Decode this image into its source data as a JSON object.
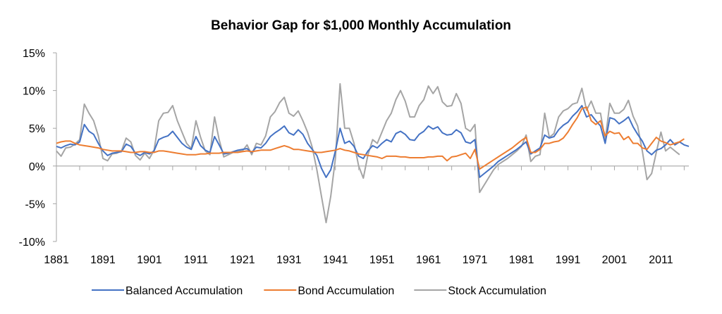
{
  "chart_data": {
    "type": "line",
    "title": "Behavior Gap for $1,000 Monthly Accumulation",
    "xlabel": "",
    "ylabel": "",
    "ylim": [
      -10,
      15
    ],
    "xlim": [
      1881,
      2017
    ],
    "yticks": [
      -10,
      -5,
      0,
      5,
      10,
      15
    ],
    "ytick_labels": [
      "-10%",
      "-5%",
      "0%",
      "5%",
      "10%",
      "15%"
    ],
    "xtick_labels": [
      "1881",
      "1891",
      "1901",
      "1911",
      "1921",
      "1931",
      "1941",
      "1951",
      "1961",
      "1971",
      "1981",
      "1991",
      "2001",
      "2011"
    ],
    "xtick_years": [
      1881,
      1891,
      1901,
      1911,
      1921,
      1931,
      1941,
      1951,
      1961,
      1971,
      1981,
      1991,
      2001,
      2011
    ],
    "grid": false,
    "legend_position": "bottom",
    "x": [
      1881,
      1882,
      1883,
      1884,
      1885,
      1886,
      1887,
      1888,
      1889,
      1890,
      1891,
      1892,
      1893,
      1894,
      1895,
      1896,
      1897,
      1898,
      1899,
      1900,
      1901,
      1902,
      1903,
      1904,
      1905,
      1906,
      1907,
      1908,
      1909,
      1910,
      1911,
      1912,
      1913,
      1914,
      1915,
      1916,
      1917,
      1918,
      1919,
      1920,
      1921,
      1922,
      1923,
      1924,
      1925,
      1926,
      1927,
      1928,
      1929,
      1930,
      1931,
      1932,
      1933,
      1934,
      1935,
      1936,
      1937,
      1938,
      1939,
      1940,
      1941,
      1942,
      1943,
      1944,
      1945,
      1946,
      1947,
      1948,
      1949,
      1950,
      1951,
      1952,
      1953,
      1954,
      1955,
      1956,
      1957,
      1958,
      1959,
      1960,
      1961,
      1962,
      1963,
      1964,
      1965,
      1966,
      1967,
      1968,
      1969,
      1970,
      1971,
      1972,
      1973,
      1974,
      1975,
      1976,
      1977,
      1978,
      1979,
      1980,
      1981,
      1982,
      1983,
      1984,
      1985,
      1986,
      1987,
      1988,
      1989,
      1990,
      1991,
      1992,
      1993,
      1994,
      1995,
      1996,
      1997,
      1998,
      1999,
      2000,
      2001,
      2002,
      2003,
      2004,
      2005,
      2006,
      2007,
      2008,
      2009,
      2010,
      2011,
      2012,
      2013,
      2014,
      2015,
      2016,
      2017
    ],
    "series": [
      {
        "name": "Balanced Accumulation",
        "color": "#4472C4",
        "values": [
          2.6,
          2.4,
          2.7,
          2.9,
          2.8,
          3.2,
          5.5,
          4.6,
          4.2,
          3.0,
          2.0,
          1.4,
          1.7,
          1.8,
          1.9,
          2.9,
          2.6,
          1.7,
          1.4,
          1.8,
          1.6,
          2.0,
          3.5,
          3.8,
          4.0,
          4.6,
          3.8,
          3.0,
          2.5,
          2.2,
          3.9,
          2.7,
          2.1,
          1.8,
          3.9,
          2.8,
          1.6,
          1.7,
          1.9,
          2.1,
          2.2,
          2.3,
          1.8,
          2.5,
          2.4,
          3.0,
          3.9,
          4.4,
          4.8,
          5.3,
          4.4,
          4.1,
          4.8,
          4.2,
          3.0,
          2.2,
          1.4,
          -0.3,
          -1.5,
          -0.5,
          2.0,
          5.0,
          3.0,
          3.3,
          2.6,
          1.3,
          1.0,
          2.0,
          2.7,
          2.4,
          3.0,
          3.5,
          3.2,
          4.3,
          4.6,
          4.2,
          3.5,
          3.4,
          4.2,
          4.6,
          5.3,
          4.9,
          5.2,
          4.4,
          4.1,
          4.2,
          4.8,
          4.4,
          3.2,
          3.0,
          3.5,
          -1.5,
          -1.0,
          -0.5,
          0.0,
          0.6,
          1.0,
          1.4,
          1.8,
          2.2,
          2.7,
          3.2,
          1.6,
          2.0,
          2.4,
          4.1,
          3.7,
          3.9,
          4.8,
          5.4,
          5.8,
          6.6,
          7.2,
          8.0,
          6.5,
          6.8,
          6.0,
          5.3,
          3.0,
          6.4,
          6.2,
          5.6,
          6.0,
          6.5,
          5.2,
          4.2,
          3.3,
          2.0,
          1.5,
          2.1,
          2.3,
          2.8,
          3.5,
          2.8,
          3.2,
          2.8,
          2.6
        ]
      },
      {
        "name": "Bond Accumulation",
        "color": "#ED7D31",
        "values": [
          3.0,
          3.2,
          3.3,
          3.3,
          3.0,
          2.8,
          2.7,
          2.6,
          2.5,
          2.4,
          2.2,
          2.1,
          2.0,
          2.0,
          2.0,
          1.9,
          1.8,
          1.8,
          1.9,
          1.9,
          1.8,
          1.8,
          2.0,
          2.0,
          1.9,
          1.8,
          1.7,
          1.6,
          1.5,
          1.5,
          1.5,
          1.6,
          1.6,
          1.7,
          1.7,
          1.7,
          1.8,
          1.8,
          1.8,
          1.8,
          1.9,
          2.0,
          1.9,
          2.0,
          2.1,
          2.1,
          2.1,
          2.3,
          2.5,
          2.7,
          2.5,
          2.2,
          2.2,
          2.1,
          2.0,
          1.9,
          1.8,
          1.8,
          1.9,
          2.0,
          2.1,
          2.3,
          2.1,
          2.0,
          1.8,
          1.6,
          1.5,
          1.4,
          1.3,
          1.2,
          1.0,
          1.3,
          1.3,
          1.3,
          1.2,
          1.2,
          1.1,
          1.1,
          1.1,
          1.1,
          1.2,
          1.2,
          1.3,
          1.3,
          0.7,
          1.2,
          1.3,
          1.5,
          1.7,
          1.0,
          2.2,
          -0.4,
          0.0,
          0.4,
          0.8,
          1.2,
          1.6,
          2.0,
          2.4,
          2.9,
          3.4,
          3.8,
          1.8,
          1.8,
          2.2,
          3.0,
          3.0,
          3.2,
          3.3,
          3.7,
          4.5,
          5.5,
          6.4,
          7.6,
          7.8,
          6.0,
          5.5,
          6.0,
          4.0,
          4.6,
          4.3,
          4.4,
          3.5,
          3.9,
          3.0,
          3.0,
          2.4,
          2.2,
          3.0,
          3.8,
          3.3,
          3.1,
          2.8,
          3.0,
          3.2,
          3.6
        ]
      },
      {
        "name": "Stock Accumulation",
        "color": "#A5A5A5",
        "values": [
          2.0,
          1.3,
          2.4,
          2.5,
          2.9,
          3.5,
          8.2,
          7.0,
          6.0,
          4.0,
          1.0,
          0.7,
          1.6,
          1.7,
          2.0,
          3.7,
          3.2,
          1.4,
          0.8,
          1.7,
          1.0,
          2.1,
          6.0,
          7.0,
          7.1,
          8.0,
          6.0,
          4.5,
          3.0,
          2.3,
          6.0,
          3.8,
          2.0,
          1.5,
          6.5,
          3.5,
          1.2,
          1.5,
          1.8,
          2.0,
          2.0,
          2.8,
          1.5,
          3.0,
          2.8,
          4.0,
          6.5,
          7.2,
          8.4,
          9.1,
          7.0,
          6.6,
          7.3,
          6.0,
          4.5,
          2.5,
          -0.5,
          -4.0,
          -7.5,
          -4.0,
          1.0,
          10.9,
          5.0,
          5.0,
          3.0,
          0.0,
          -1.6,
          1.5,
          3.5,
          3.0,
          4.5,
          6.0,
          7.0,
          8.8,
          10.0,
          8.6,
          6.5,
          6.5,
          8.0,
          8.8,
          10.6,
          9.6,
          10.5,
          8.5,
          7.9,
          8.0,
          9.6,
          8.3,
          5.0,
          4.6,
          5.5,
          -3.5,
          -2.5,
          -1.5,
          -0.5,
          0.2,
          0.6,
          1.0,
          1.5,
          2.0,
          2.6,
          4.1,
          0.6,
          1.3,
          1.5,
          7.0,
          3.8,
          4.3,
          6.5,
          7.3,
          7.6,
          8.2,
          8.4,
          10.3,
          7.4,
          8.6,
          7.0,
          7.0,
          3.4,
          8.3,
          7.0,
          7.0,
          7.5,
          8.7,
          6.6,
          5.3,
          2.0,
          -1.8,
          -1.0,
          1.8,
          4.5,
          2.0,
          2.5,
          2.0,
          1.5
        ]
      }
    ]
  }
}
